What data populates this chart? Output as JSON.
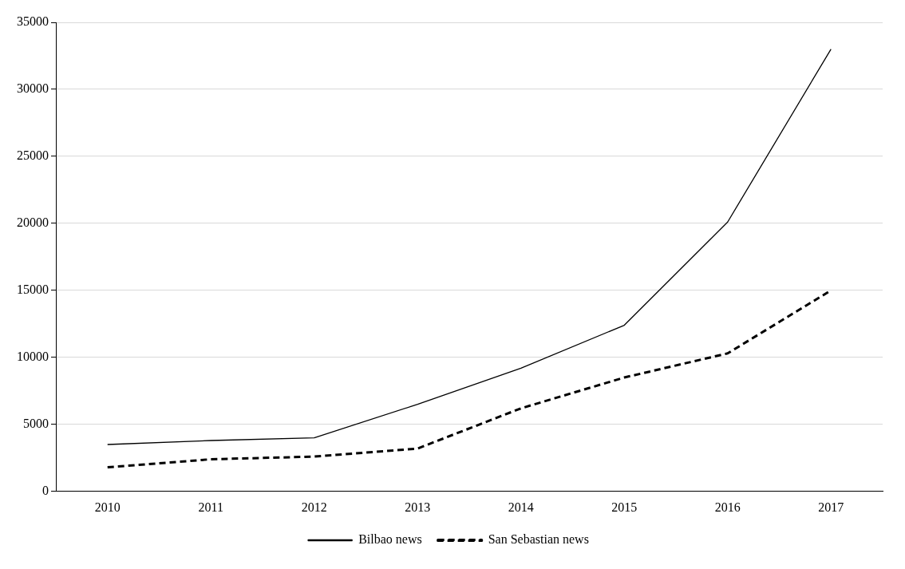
{
  "chart_data": {
    "type": "line",
    "categories": [
      "2010",
      "2011",
      "2012",
      "2013",
      "2014",
      "2015",
      "2016",
      "2017"
    ],
    "series": [
      {
        "name": "Bilbao news",
        "color": "#000000",
        "line_style": "solid",
        "values": [
          3500,
          3800,
          4000,
          6500,
          9200,
          12400,
          20100,
          33000
        ]
      },
      {
        "name": "San Sebastian news",
        "color": "#000000",
        "line_style": "dashed",
        "values": [
          1800,
          2400,
          2600,
          3200,
          6200,
          8500,
          10300,
          15000
        ]
      }
    ],
    "ylim": [
      0,
      35000
    ],
    "yticks": [
      0,
      5000,
      10000,
      15000,
      20000,
      25000,
      30000,
      35000
    ],
    "grid": "y",
    "legend": "bottom",
    "marker": "none"
  }
}
